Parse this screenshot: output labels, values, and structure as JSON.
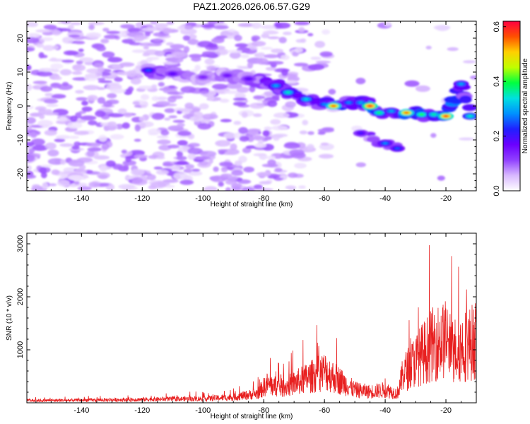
{
  "title": "PAZ1.2026.026.06.57.G29",
  "chart_data": [
    {
      "type": "heatmap",
      "name": "spectrogram",
      "xlabel": "Height of straight line (km)",
      "ylabel": "Frequency (Hz)",
      "xlim": [
        -158,
        -10
      ],
      "ylim": [
        -25,
        25
      ],
      "x_ticks": [
        -140,
        -120,
        -100,
        -80,
        -60,
        -40,
        -20
      ],
      "y_ticks": [
        -20,
        -10,
        0,
        10,
        20
      ],
      "colorbar": {
        "label": "Normalized spectral amplitude",
        "range": [
          0.0,
          0.62
        ],
        "ticks": [
          0.0,
          0.2,
          0.4,
          0.6
        ],
        "colors": [
          "#ffffff",
          "#d8b8ff",
          "#9040ff",
          "#6a00ff",
          "#2020ff",
          "#0090ff",
          "#00e0e0",
          "#00ff40",
          "#c0ff00",
          "#ffd000",
          "#ff5000",
          "#ff0040"
        ]
      },
      "ridge": [
        {
          "x": -118,
          "freq": 10.5,
          "amp": 0.25
        },
        {
          "x": -110,
          "freq": 9.5,
          "amp": 0.18
        },
        {
          "x": -100,
          "freq": 8.5,
          "amp": 0.14
        },
        {
          "x": -92,
          "freq": 9.0,
          "amp": 0.16
        },
        {
          "x": -85,
          "freq": 8.0,
          "amp": 0.18
        },
        {
          "x": -76,
          "freq": 6.0,
          "amp": 0.3
        },
        {
          "x": -72,
          "freq": 4.0,
          "amp": 0.35
        },
        {
          "x": -66,
          "freq": 2.0,
          "amp": 0.33
        },
        {
          "x": -60,
          "freq": 0.5,
          "amp": 0.28
        },
        {
          "x": -57,
          "freq": 0.0,
          "amp": 0.55
        },
        {
          "x": -52,
          "freq": 1.0,
          "amp": 0.28
        },
        {
          "x": -48,
          "freq": 1.0,
          "amp": 0.3
        },
        {
          "x": -45,
          "freq": 0.0,
          "amp": 0.6
        },
        {
          "x": -42,
          "freq": -2.0,
          "amp": 0.38
        },
        {
          "x": -38,
          "freq": -1.5,
          "amp": 0.3
        },
        {
          "x": -33,
          "freq": -2.0,
          "amp": 0.55
        },
        {
          "x": -28,
          "freq": -2.5,
          "amp": 0.4
        },
        {
          "x": -24,
          "freq": -2.5,
          "amp": 0.36
        },
        {
          "x": -20,
          "freq": -3.0,
          "amp": 0.58
        },
        {
          "x": -15,
          "freq": 6.5,
          "amp": 0.3
        },
        {
          "x": -12,
          "freq": -3.0,
          "amp": 0.35
        },
        {
          "x": -48,
          "freq": -8.0,
          "amp": 0.2
        },
        {
          "x": -40,
          "freq": -11.0,
          "amp": 0.28
        },
        {
          "x": -36,
          "freq": -12.5,
          "amp": 0.25
        }
      ]
    },
    {
      "type": "line",
      "name": "snr",
      "xlabel": "Height of straight line (km)",
      "ylabel": "SNR (10 * v/v)",
      "xlim": [
        -158,
        -10
      ],
      "ylim": [
        0,
        3200
      ],
      "x_ticks": [
        -140,
        -120,
        -100,
        -80,
        -60,
        -40,
        -20
      ],
      "y_ticks": [
        1000,
        2000,
        3000
      ],
      "color": "#e82020",
      "envelope": [
        {
          "x": -158,
          "y": 60
        },
        {
          "x": -140,
          "y": 70
        },
        {
          "x": -120,
          "y": 90
        },
        {
          "x": -100,
          "y": 110
        },
        {
          "x": -90,
          "y": 150
        },
        {
          "x": -82,
          "y": 250
        },
        {
          "x": -79,
          "y": 500
        },
        {
          "x": -74,
          "y": 400
        },
        {
          "x": -66,
          "y": 650
        },
        {
          "x": -60,
          "y": 850
        },
        {
          "x": -55,
          "y": 600
        },
        {
          "x": -50,
          "y": 350
        },
        {
          "x": -45,
          "y": 300
        },
        {
          "x": -40,
          "y": 350
        },
        {
          "x": -36,
          "y": 250
        },
        {
          "x": -34,
          "y": 800
        },
        {
          "x": -28,
          "y": 1300
        },
        {
          "x": -24,
          "y": 1600
        },
        {
          "x": -20,
          "y": 1700
        },
        {
          "x": -18,
          "y": 1400
        },
        {
          "x": -15,
          "y": 1500
        },
        {
          "x": -12,
          "y": 1600
        },
        {
          "x": -10,
          "y": 1700
        }
      ]
    }
  ]
}
